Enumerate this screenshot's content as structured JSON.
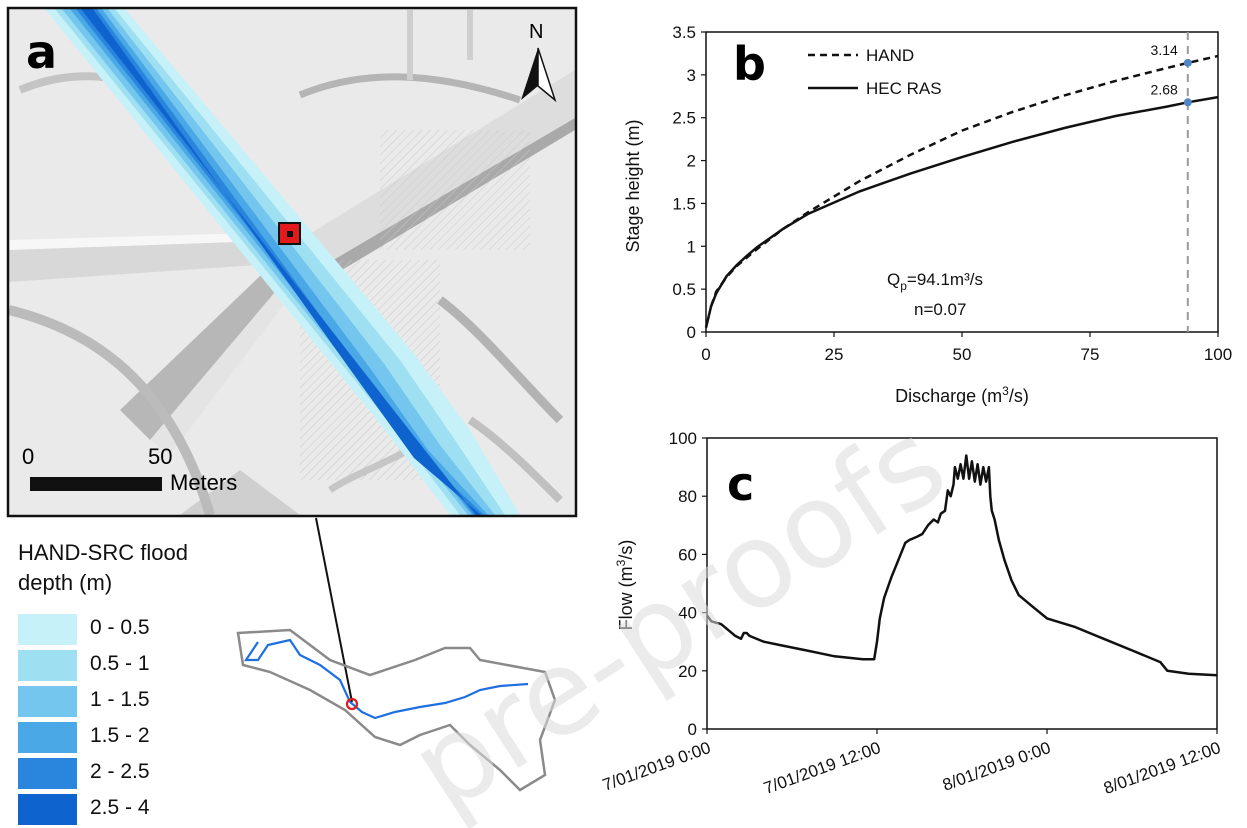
{
  "panel_a": {
    "letter": "a",
    "north_label": "N",
    "scale_labels": [
      "0",
      "50",
      "Meters"
    ]
  },
  "legend": {
    "title_line1": "HAND-SRC flood",
    "title_line2": "depth (m)",
    "classes": [
      {
        "label": "0 - 0.5",
        "color": "#c6f1f8"
      },
      {
        "label": "0.5 - 1",
        "color": "#9fdff2"
      },
      {
        "label": "1 - 1.5",
        "color": "#74c6ee"
      },
      {
        "label": "1.5 - 2",
        "color": "#4aa8e6"
      },
      {
        "label": "2 - 2.5",
        "color": "#2a86dc"
      },
      {
        "label": "2.5 - 4",
        "color": "#0f63cf"
      }
    ]
  },
  "watermark_text": "pre-proofs",
  "chart_data": [
    {
      "panel": "b",
      "type": "line",
      "xlabel": "Discharge (m³/s)",
      "ylabel": "Stage height (m)",
      "xlim": [
        0,
        100
      ],
      "ylim": [
        0,
        3.5
      ],
      "xticks": [
        "0",
        "25",
        "50",
        "75",
        "100"
      ],
      "yticks": [
        "0",
        "0.5",
        "1",
        "1.5",
        "2",
        "2.5",
        "3",
        "3.5"
      ],
      "legend_position": "top-left",
      "series": [
        {
          "name": "HAND",
          "style": "dashed",
          "x": [
            1,
            2,
            4,
            6,
            8,
            10,
            15,
            20,
            30,
            40,
            50,
            60,
            70,
            80,
            90,
            94.1,
            100
          ],
          "y": [
            0.3,
            0.47,
            0.64,
            0.77,
            0.87,
            0.97,
            1.2,
            1.4,
            1.76,
            2.07,
            2.35,
            2.57,
            2.76,
            2.93,
            3.08,
            3.14,
            3.22
          ]
        },
        {
          "name": "HEC RAS",
          "style": "solid",
          "x": [
            0,
            1,
            2,
            4,
            6,
            8,
            10,
            15,
            20,
            30,
            40,
            50,
            60,
            70,
            80,
            90,
            94.1,
            100
          ],
          "y": [
            0.05,
            0.3,
            0.45,
            0.65,
            0.78,
            0.89,
            0.99,
            1.2,
            1.38,
            1.64,
            1.85,
            2.04,
            2.22,
            2.38,
            2.52,
            2.63,
            2.68,
            2.74
          ]
        }
      ],
      "marker_x": 94.1,
      "markers": [
        {
          "label": "3.14",
          "y": 3.14
        },
        {
          "label": "2.68",
          "y": 2.68
        }
      ],
      "annotation_q": "Q",
      "annotation_q_sub": "p",
      "annotation_q_value": "=94.1m³/s",
      "annotation_n": "n=0.07"
    },
    {
      "panel": "c",
      "type": "line",
      "xlabel": "",
      "ylabel": "Flow (m³/s)",
      "xlim_hours": [
        0,
        36
      ],
      "ylim": [
        0,
        100
      ],
      "xtick_labels": [
        "7/01/2019 0:00",
        "7/01/2019 12:00",
        "8/01/2019 0:00",
        "8/01/2019 12:00"
      ],
      "yticks": [
        "0",
        "20",
        "40",
        "60",
        "80",
        "100"
      ],
      "series": [
        {
          "name": "",
          "t_hours": [
            0,
            0.3,
            1,
            1.5,
            2,
            2.4,
            2.6,
            2.8,
            3,
            4,
            5,
            6,
            7,
            8,
            9,
            10,
            11,
            11.8,
            12,
            12.2,
            12.5,
            13,
            13.5,
            14,
            14.3,
            14.8,
            15.2,
            15.6,
            16,
            16.3,
            16.5,
            16.8,
            17,
            17.2,
            17.4,
            17.5,
            17.7,
            17.9,
            18.1,
            18.3,
            18.5,
            18.7,
            18.9,
            19.1,
            19.3,
            19.5,
            19.7,
            19.9,
            20.0,
            20.1,
            20.3,
            20.6,
            21,
            21.5,
            22,
            23,
            24,
            26,
            28,
            30,
            32,
            32.5,
            34,
            36
          ],
          "y": [
            39,
            37,
            36,
            34,
            32,
            31,
            33,
            33,
            32,
            30,
            29,
            28,
            27,
            26,
            25,
            24.5,
            24,
            24,
            30,
            38,
            45,
            52,
            58,
            64,
            65,
            66,
            67,
            70,
            72,
            71,
            74,
            75,
            82,
            80,
            84,
            90,
            86,
            91,
            86,
            94,
            86,
            92,
            85,
            91,
            84,
            90,
            85,
            90,
            80,
            75,
            72,
            65,
            58,
            51,
            46,
            42,
            38,
            35,
            31,
            27,
            23,
            20,
            19,
            18.5
          ]
        }
      ]
    }
  ]
}
